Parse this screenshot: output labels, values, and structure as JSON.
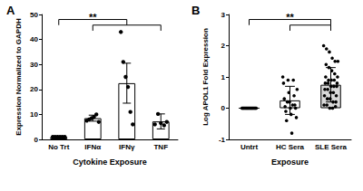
{
  "chart_data": [
    {
      "type": "bar",
      "title": "A",
      "categories": [
        "No Trt",
        "IFNα",
        "IFNγ",
        "TNF"
      ],
      "values": [
        1,
        8.5,
        22.5,
        7.2
      ],
      "errors": [
        0.2,
        1.2,
        8,
        3
      ],
      "points": [
        [
          1,
          1,
          1,
          1,
          1,
          1
        ],
        [
          7.5,
          8,
          8.5,
          9,
          10,
          7
        ],
        [
          43,
          31,
          25,
          21,
          11,
          6
        ],
        [
          6,
          6.5,
          7,
          10.5,
          6
        ]
      ],
      "colors": [
        "#ffffff",
        "#ffffff",
        "#ffffff",
        "#ffffff"
      ],
      "xlabel": "Cytokine Exposure",
      "ylabel": "Expression Normalized to GAPDH",
      "ylim": [
        0,
        50
      ],
      "yticks": [
        0,
        10,
        20,
        30,
        40,
        50
      ],
      "grid": false,
      "annotation": {
        "text": "**",
        "from": "No Trt",
        "to": [
          "IFNα",
          "IFNγ",
          "TNF"
        ]
      }
    },
    {
      "type": "bar",
      "title": "B",
      "categories": [
        "Untrt",
        "HC Sera",
        "SLE Sera"
      ],
      "values": [
        0,
        0.25,
        0.75
      ],
      "errors": [
        0,
        0.45,
        0.55
      ],
      "points": [
        [
          0,
          0,
          0,
          0,
          0,
          0,
          0,
          0,
          0,
          0,
          0,
          0,
          0,
          0,
          0,
          0,
          0,
          0,
          0,
          0
        ],
        [
          1.0,
          0.9,
          0.9,
          0.8,
          0.5,
          0.4,
          0.3,
          0.2,
          0.1,
          0.05,
          0,
          0,
          -0.1,
          -0.2,
          -0.3,
          -0.4,
          -0.8,
          0.6,
          0.2,
          0.1
        ],
        [
          2.0,
          1.9,
          1.8,
          1.6,
          1.5,
          1.5,
          1.4,
          1.3,
          1.2,
          1.1,
          1.0,
          1.0,
          0.9,
          0.9,
          0.9,
          0.8,
          0.8,
          0.8,
          0.7,
          0.7,
          0.7,
          0.6,
          0.6,
          0.5,
          0.5,
          0.4,
          0.4,
          0.3,
          0.3,
          0.2,
          0.2,
          0.1,
          0.1,
          0,
          0,
          0.05
        ]
      ],
      "colors": [
        "#ffffff",
        "#ffffff",
        "#d9d9d9"
      ],
      "xlabel": "Exposure",
      "ylabel": "Log APOL1 Fold Expression",
      "ylim": [
        -1,
        3
      ],
      "yticks": [
        -1,
        0,
        1,
        2,
        3
      ],
      "grid": false,
      "annotation": {
        "text": "**",
        "from": "Untrt",
        "to": [
          "HC Sera",
          "SLE Sera"
        ]
      }
    }
  ]
}
